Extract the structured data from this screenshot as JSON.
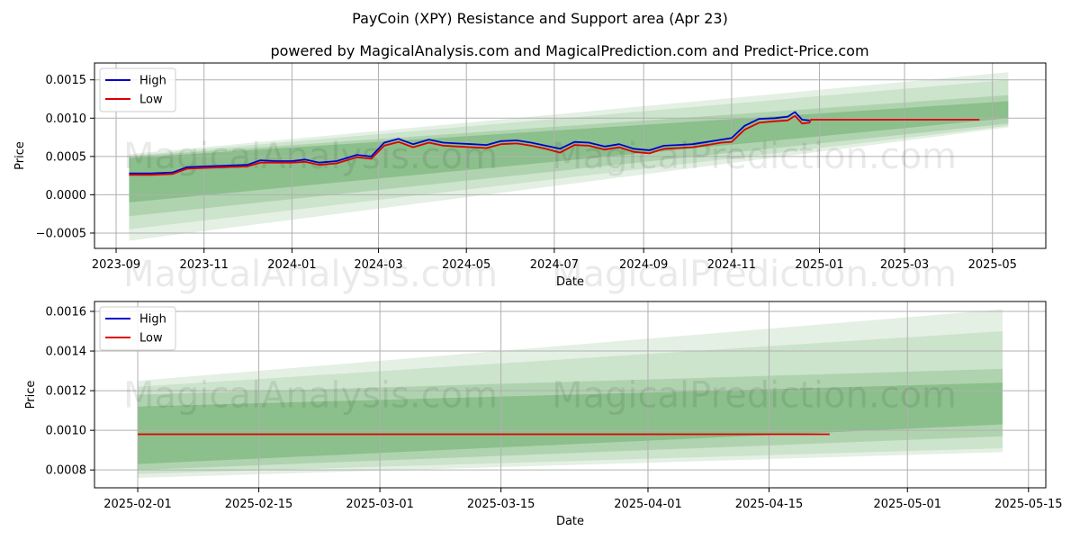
{
  "suptitle": "PayCoin (XPY) Resistance and Support area (Apr 23)",
  "subtitle": "powered by MagicalAnalysis.com and MagicalPrediction.com and Predict-Price.com",
  "watermarks": [
    "MagicalAnalysis.com",
    "MagicalPrediction.com"
  ],
  "colors": {
    "high": "#0000cc",
    "low": "#dd0000",
    "band": "#2e8b2e",
    "grid": "#b0b0b0"
  },
  "chart_data": [
    {
      "type": "line",
      "xlabel": "Date",
      "ylabel": "Price",
      "grid": true,
      "legend_position": "upper-left",
      "xlim": [
        "2023-08-17",
        "2025-06-07"
      ],
      "ylim": [
        -0.0007,
        0.00172
      ],
      "x_ticks": [
        "2023-09",
        "2023-11",
        "2024-01",
        "2024-03",
        "2024-05",
        "2024-07",
        "2024-09",
        "2024-11",
        "2025-01",
        "2025-03",
        "2025-05"
      ],
      "x_tick_dates": [
        "2023-09-01",
        "2023-11-01",
        "2024-01-01",
        "2024-03-01",
        "2024-05-01",
        "2024-07-01",
        "2024-09-01",
        "2024-11-01",
        "2025-01-01",
        "2025-03-01",
        "2025-05-01"
      ],
      "y_ticks": [
        "−0.0005",
        "0.0000",
        "0.0005",
        "0.0010",
        "0.0015"
      ],
      "y_tick_values": [
        -0.0005,
        0,
        0.0005,
        0.001,
        0.0015
      ],
      "series": [
        {
          "name": "High",
          "color": "#0000cc",
          "x": [
            "2023-09-10",
            "2023-09-25",
            "2023-10-10",
            "2023-10-20",
            "2023-11-01",
            "2023-11-15",
            "2023-12-01",
            "2023-12-10",
            "2023-12-20",
            "2024-01-01",
            "2024-01-10",
            "2024-01-20",
            "2024-02-01",
            "2024-02-15",
            "2024-02-25",
            "2024-03-05",
            "2024-03-15",
            "2024-03-25",
            "2024-04-05",
            "2024-04-15",
            "2024-04-25",
            "2024-05-05",
            "2024-05-15",
            "2024-05-25",
            "2024-06-05",
            "2024-06-15",
            "2024-06-25",
            "2024-07-05",
            "2024-07-15",
            "2024-07-25",
            "2024-08-05",
            "2024-08-15",
            "2024-08-25",
            "2024-09-05",
            "2024-09-15",
            "2024-09-25",
            "2024-10-05",
            "2024-10-15",
            "2024-10-25",
            "2024-11-01",
            "2024-11-10",
            "2024-11-20",
            "2024-12-01",
            "2024-12-10",
            "2024-12-15",
            "2024-12-20",
            "2024-12-25"
          ],
          "values": [
            0.00028,
            0.00028,
            0.00029,
            0.00036,
            0.00037,
            0.00038,
            0.00039,
            0.00045,
            0.00044,
            0.00044,
            0.00046,
            0.00042,
            0.00044,
            0.00052,
            0.0005,
            0.00068,
            0.00073,
            0.00066,
            0.00072,
            0.00068,
            0.00067,
            0.00066,
            0.00065,
            0.0007,
            0.00071,
            0.00068,
            0.00064,
            0.0006,
            0.00069,
            0.00068,
            0.00063,
            0.00066,
            0.0006,
            0.00058,
            0.00064,
            0.00065,
            0.00066,
            0.00069,
            0.00072,
            0.00074,
            0.0009,
            0.00099,
            0.001,
            0.00102,
            0.00108,
            0.00098,
            0.00097
          ]
        },
        {
          "name": "Low",
          "color": "#dd0000",
          "x": [
            "2023-09-10",
            "2023-09-25",
            "2023-10-10",
            "2023-10-20",
            "2023-11-01",
            "2023-11-15",
            "2023-12-01",
            "2023-12-10",
            "2023-12-20",
            "2024-01-01",
            "2024-01-10",
            "2024-01-20",
            "2024-02-01",
            "2024-02-15",
            "2024-02-25",
            "2024-03-05",
            "2024-03-15",
            "2024-03-25",
            "2024-04-05",
            "2024-04-15",
            "2024-04-25",
            "2024-05-05",
            "2024-05-15",
            "2024-05-25",
            "2024-06-05",
            "2024-06-15",
            "2024-06-25",
            "2024-07-05",
            "2024-07-15",
            "2024-07-25",
            "2024-08-05",
            "2024-08-15",
            "2024-08-25",
            "2024-09-05",
            "2024-09-15",
            "2024-09-25",
            "2024-10-05",
            "2024-10-15",
            "2024-10-25",
            "2024-11-01",
            "2024-11-10",
            "2024-11-20",
            "2024-12-01",
            "2024-12-10",
            "2024-12-15",
            "2024-12-20",
            "2024-12-25",
            "2024-12-26",
            "2025-04-22"
          ],
          "values": [
            0.00026,
            0.00026,
            0.00027,
            0.00034,
            0.00035,
            0.00036,
            0.00037,
            0.00042,
            0.00042,
            0.00042,
            0.00043,
            0.00039,
            0.00041,
            0.00049,
            0.00047,
            0.00064,
            0.00069,
            0.00062,
            0.00068,
            0.00064,
            0.00063,
            0.00062,
            0.00061,
            0.00066,
            0.00067,
            0.00064,
            0.0006,
            0.00055,
            0.00065,
            0.00064,
            0.00059,
            0.00062,
            0.00056,
            0.00054,
            0.0006,
            0.00061,
            0.00062,
            0.00065,
            0.00068,
            0.00069,
            0.00085,
            0.00094,
            0.00096,
            0.00097,
            0.00103,
            0.00093,
            0.00094,
            0.00098,
            0.00098
          ]
        }
      ],
      "bands": [
        {
          "start": "2023-09-10",
          "end": "2025-05-12",
          "start_range": [
            -0.0006,
            0.00053
          ],
          "end_range": [
            0.00088,
            0.0016
          ],
          "opacity": 0.13
        },
        {
          "start": "2023-09-10",
          "end": "2025-05-12",
          "start_range": [
            -0.00045,
            0.00051
          ],
          "end_range": [
            0.0009,
            0.0015
          ],
          "opacity": 0.13
        },
        {
          "start": "2023-09-10",
          "end": "2025-05-12",
          "start_range": [
            -0.00028,
            0.0005
          ],
          "end_range": [
            0.00093,
            0.0013
          ],
          "opacity": 0.18
        },
        {
          "start": "2023-09-10",
          "end": "2025-05-12",
          "start_range": [
            -0.0001,
            0.00048
          ],
          "end_range": [
            0.001,
            0.00122
          ],
          "opacity": 0.28
        }
      ]
    },
    {
      "type": "line",
      "xlabel": "Date",
      "ylabel": "Price",
      "grid": true,
      "legend_position": "upper-left",
      "xlim": [
        "2025-01-27",
        "2025-05-17"
      ],
      "ylim": [
        0.00071,
        0.00165
      ],
      "x_ticks": [
        "2025-02-01",
        "2025-02-15",
        "2025-03-01",
        "2025-03-15",
        "2025-04-01",
        "2025-04-15",
        "2025-05-01",
        "2025-05-15"
      ],
      "x_tick_dates": [
        "2025-02-01",
        "2025-02-15",
        "2025-03-01",
        "2025-03-15",
        "2025-04-01",
        "2025-04-15",
        "2025-05-01",
        "2025-05-15"
      ],
      "y_ticks": [
        "0.0008",
        "0.0010",
        "0.0012",
        "0.0014",
        "0.0016"
      ],
      "y_tick_values": [
        0.0008,
        0.001,
        0.0012,
        0.0014,
        0.0016
      ],
      "series": [
        {
          "name": "High",
          "color": "#0000cc",
          "x": [],
          "values": []
        },
        {
          "name": "Low",
          "color": "#dd0000",
          "x": [
            "2025-02-01",
            "2025-04-22"
          ],
          "values": [
            0.00098,
            0.00098
          ]
        }
      ],
      "bands": [
        {
          "start": "2025-02-01",
          "end": "2025-05-12",
          "start_range": [
            0.00076,
            0.00125
          ],
          "end_range": [
            0.00089,
            0.00161
          ],
          "opacity": 0.13
        },
        {
          "start": "2025-02-01",
          "end": "2025-05-12",
          "start_range": [
            0.00078,
            0.00122
          ],
          "end_range": [
            0.00091,
            0.0015
          ],
          "opacity": 0.13
        },
        {
          "start": "2025-02-01",
          "end": "2025-05-12",
          "start_range": [
            0.0008,
            0.00118
          ],
          "end_range": [
            0.00097,
            0.00131
          ],
          "opacity": 0.18
        },
        {
          "start": "2025-02-01",
          "end": "2025-05-12",
          "start_range": [
            0.00083,
            0.00112
          ],
          "end_range": [
            0.00103,
            0.00124
          ],
          "opacity": 0.28
        }
      ]
    }
  ]
}
